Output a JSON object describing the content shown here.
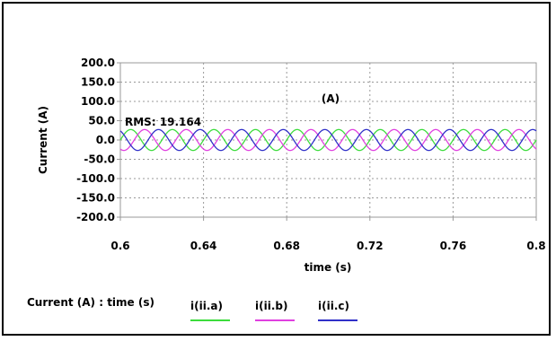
{
  "chart_data": {
    "type": "line",
    "title": "",
    "annotation": "(A)",
    "rms_label": "RMS: 19.164",
    "xlabel": "time (s)",
    "ylabel": "Current (A)",
    "xlim": [
      0.6,
      0.8
    ],
    "ylim": [
      -200.0,
      200.0
    ],
    "x_ticks": [
      "0.6",
      "0.64",
      "0.68",
      "0.72",
      "0.76",
      "0.8"
    ],
    "y_ticks": [
      "200.0",
      "150.0",
      "100.0",
      "50.0",
      "0.0",
      "-50.0",
      "-100.0",
      "-150.0",
      "-200.0"
    ],
    "grid": true,
    "legend_title": "Current (A) : time (s)",
    "legend_position": "bottom",
    "waveform": {
      "amplitude": 27.1,
      "frequency_hz": 50
    },
    "series": [
      {
        "name": "i(ii.a)",
        "color": "#3cdc3c",
        "phase_deg": 0
      },
      {
        "name": "i(ii.b)",
        "color": "#e040e0",
        "phase_deg": -120
      },
      {
        "name": "i(ii.c)",
        "color": "#3030c8",
        "phase_deg": 120
      }
    ]
  }
}
